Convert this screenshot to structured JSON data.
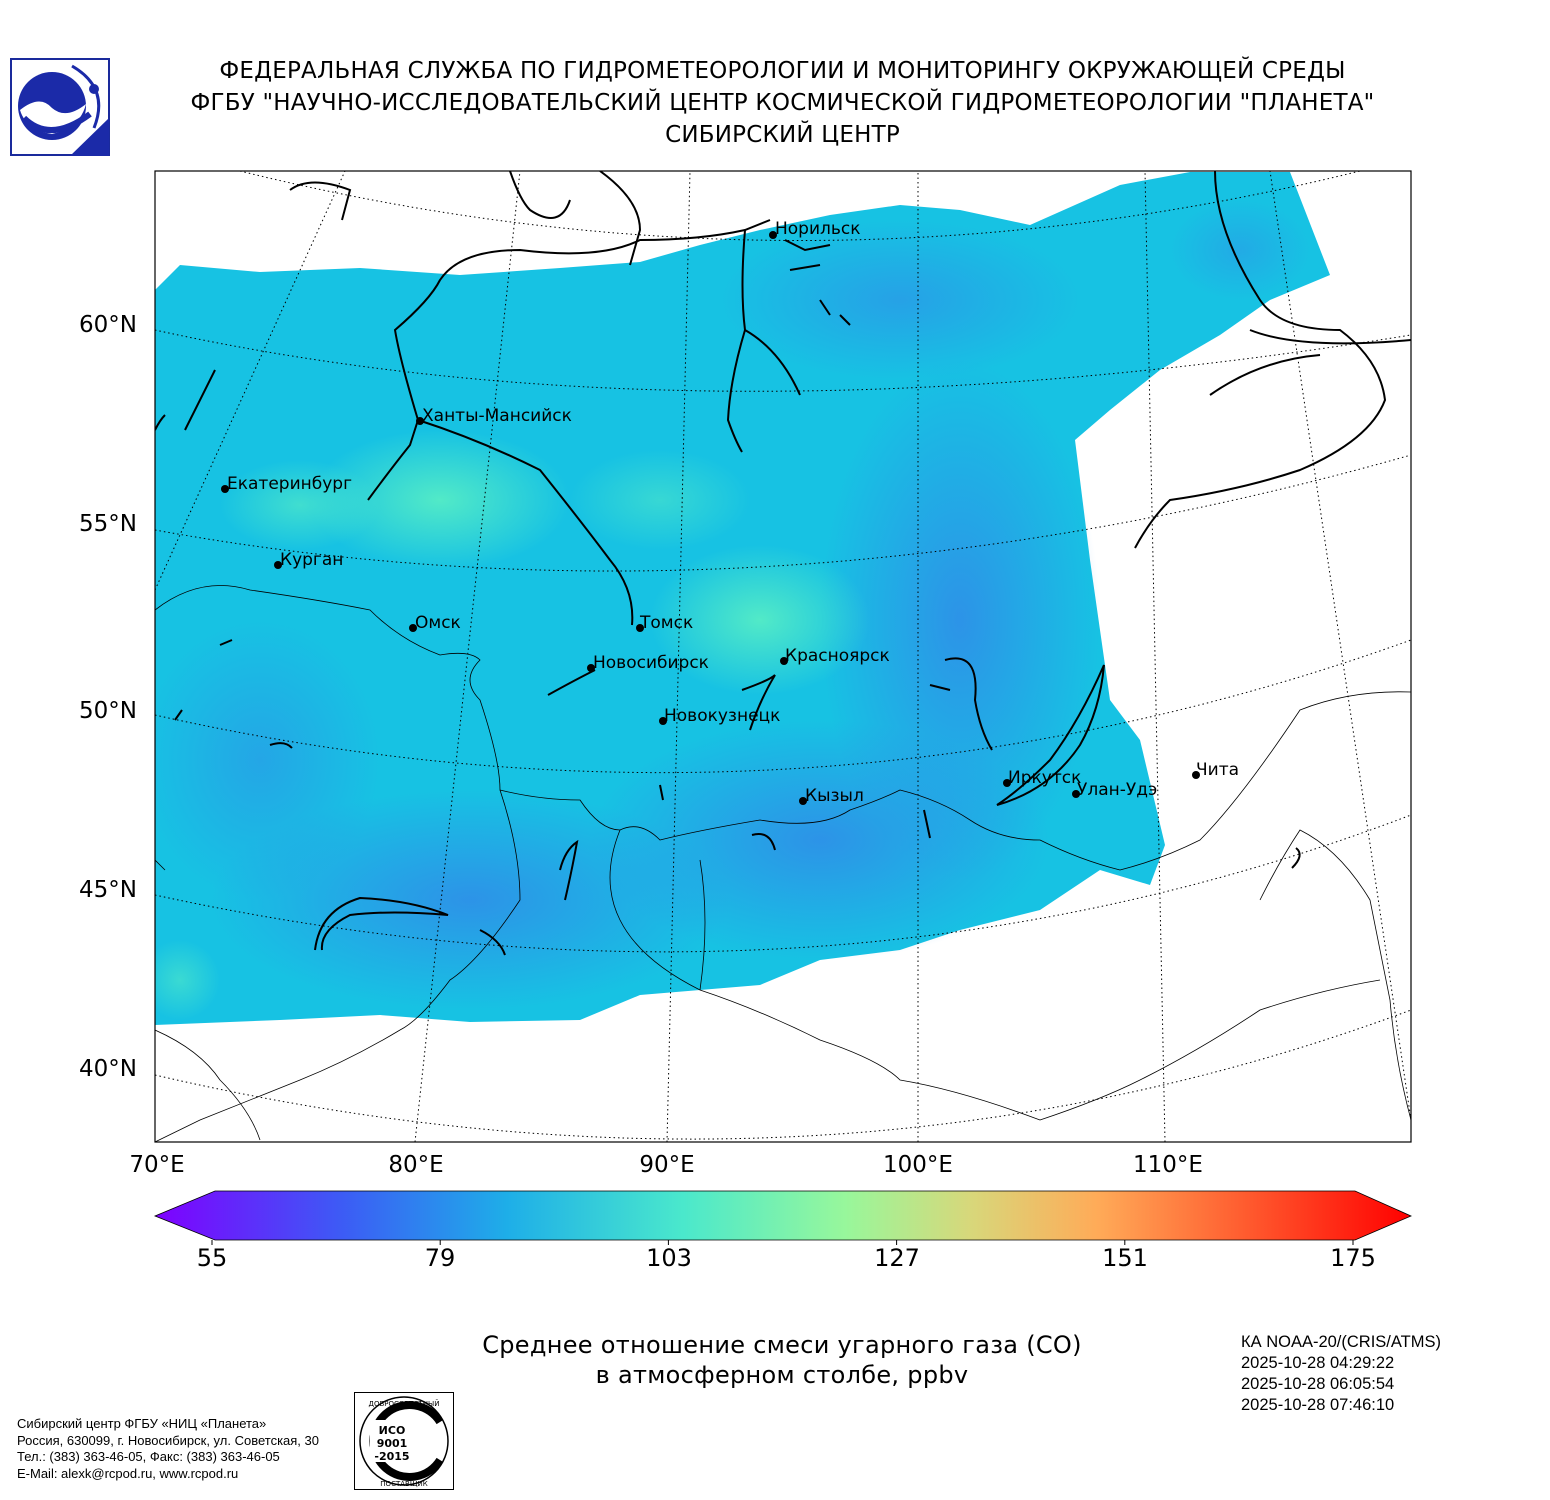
{
  "header": {
    "line1": "ФЕДЕРАЛЬНАЯ СЛУЖБА ПО ГИДРОМЕТЕОРОЛОГИИ И МОНИТОРИНГУ ОКРУЖАЮЩЕЙ СРЕДЫ",
    "line2": "ФГБУ \"НАУЧНО-ИССЛЕДОВАТЕЛЬСКИЙ ЦЕНТР КОСМИЧЕСКОЙ ГИДРОМЕТЕОРОЛОГИИ \"ПЛАНЕТА\"",
    "line3": "СИБИРСКИЙ ЦЕНТР"
  },
  "map": {
    "lat_labels": [
      "60°N",
      "55°N",
      "50°N",
      "45°N",
      "40°N"
    ],
    "lon_labels": [
      "70°E",
      "80°E",
      "90°E",
      "100°E",
      "110°E"
    ],
    "cities": [
      {
        "name": "Норильск"
      },
      {
        "name": "Ханты-Мансийск"
      },
      {
        "name": "Екатеринбург"
      },
      {
        "name": "Курган"
      },
      {
        "name": "Омск"
      },
      {
        "name": "Томск"
      },
      {
        "name": "Красноярск"
      },
      {
        "name": "Новосибирск"
      },
      {
        "name": "Новокузнецк"
      },
      {
        "name": "Иркутск"
      },
      {
        "name": "Улан-Удэ"
      },
      {
        "name": "Чита"
      },
      {
        "name": "Кызыл"
      }
    ]
  },
  "colorbar": {
    "ticks": [
      "55",
      "79",
      "103",
      "127",
      "151",
      "175"
    ],
    "min": 55,
    "max": 175,
    "colors": [
      "#7f00ff",
      "#3a6af5",
      "#1fb5e6",
      "#4ee9c8",
      "#9af79a",
      "#dcd878",
      "#ffa757",
      "#ff5a2d",
      "#ff0000"
    ]
  },
  "caption": {
    "line1": "Среднее отношение смеси угарного газа (CO)",
    "line2": "в атмосферном столбе, ppbv"
  },
  "satellite": {
    "name": "КА NOAA-20/(CRIS/ATMS)",
    "times": [
      "2025-10-28 04:29:22",
      "2025-10-28 06:05:54",
      "2025-10-28 07:46:10"
    ]
  },
  "address": {
    "line1": "Сибирский центр ФГБУ «НИЦ «Планета»",
    "line2": "Россия, 630099, г. Новосибирск, ул. Советская, 30",
    "line3": "Тел.: (383) 363-46-05, Факс: (383) 363-46-05",
    "line4": "E-Mail: alexk@rcpod.ru, www.rcpod.ru"
  },
  "iso_stamp": {
    "top_text": "ДОБРОСОВЕСТНЫЙ",
    "bottom_text": "ПОСТАВЩИК",
    "std": [
      "ИСО",
      "9001",
      "-2015"
    ]
  }
}
